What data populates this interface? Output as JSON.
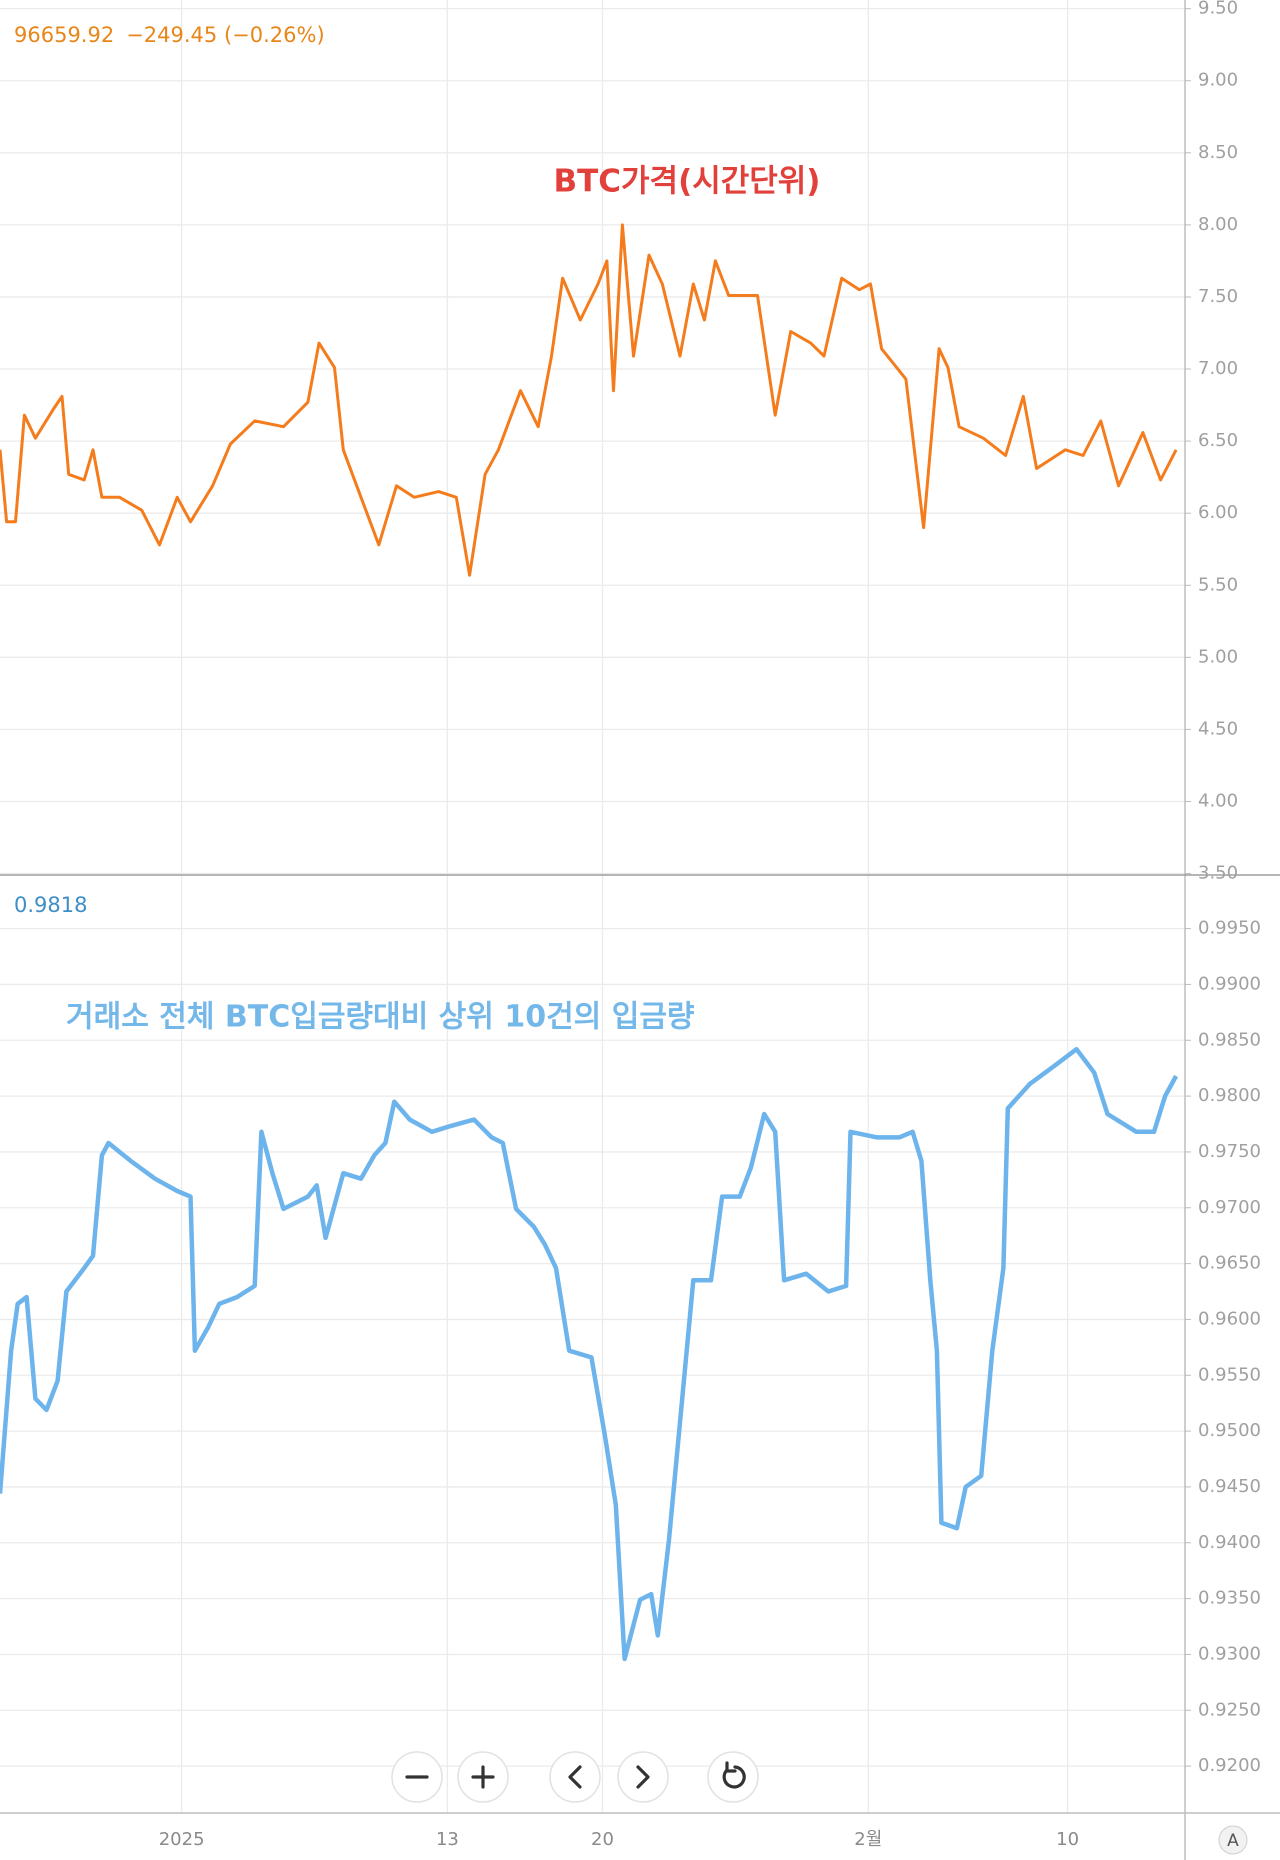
{
  "axis_mode_button": "A",
  "chart_data": [
    {
      "type": "line",
      "legend_value": "96659.92",
      "legend_change": "−249.45 (−0.26%)",
      "annotation": "BTC가격(시간단위)",
      "xlim": [
        -8.2,
        45.3
      ],
      "xticks": [
        0,
        12,
        19,
        31,
        40
      ],
      "ylim": [
        3.49,
        9.56
      ],
      "yticks": [
        {
          "value": 3.5,
          "label": "3.50"
        },
        {
          "value": 4,
          "label": "4.00"
        },
        {
          "value": 4.5,
          "label": "4.50"
        },
        {
          "value": 5,
          "label": "5.00"
        },
        {
          "value": 5.5,
          "label": "5.50"
        },
        {
          "value": 6,
          "label": "6.00"
        },
        {
          "value": 6.5,
          "label": "6.50"
        },
        {
          "value": 7,
          "label": "7.00"
        },
        {
          "value": 7.5,
          "label": "7.50"
        },
        {
          "value": 8,
          "label": "8.00"
        },
        {
          "value": 8.5,
          "label": "8.50"
        },
        {
          "value": 9,
          "label": "9.00"
        },
        {
          "value": 9.5,
          "label": "9.50"
        }
      ],
      "grid": true,
      "series": [
        {
          "color": "#f47c1c",
          "x": [
            -8.2,
            -7.9,
            -7.5,
            -7.1,
            -6.6,
            -5.8,
            -5.4,
            -5.1,
            -4.4,
            -4.0,
            -3.6,
            -2.8,
            -1.8,
            -1.0,
            -0.2,
            0.4,
            1.4,
            2.2,
            3.3,
            4.6,
            5.7,
            6.2,
            6.9,
            7.3,
            8.1,
            8.9,
            9.7,
            10.5,
            11.6,
            12.4,
            13.0,
            13.7,
            14.3,
            15.3,
            16.1,
            16.7,
            17.2,
            18.0,
            18.8,
            19.2,
            19.5,
            19.9,
            20.4,
            21.1,
            21.7,
            22.5,
            23.1,
            23.6,
            24.1,
            24.7,
            26.0,
            26.8,
            27.5,
            28.4,
            29.0,
            29.8,
            30.6,
            31.1,
            31.6,
            32.7,
            33.5,
            34.2,
            34.6,
            35.1,
            36.2,
            37.2,
            38.0,
            38.6,
            39.9,
            40.7,
            41.5,
            42.3,
            43.4,
            44.2,
            44.9
          ],
          "values": [
            6.44,
            5.94,
            5.94,
            6.68,
            6.52,
            6.72,
            6.81,
            6.27,
            6.23,
            6.44,
            6.11,
            6.11,
            6.02,
            5.78,
            6.11,
            5.94,
            6.19,
            6.48,
            6.64,
            6.6,
            6.77,
            7.18,
            7.01,
            6.44,
            6.11,
            5.78,
            6.19,
            6.11,
            6.15,
            6.11,
            5.57,
            6.27,
            6.44,
            6.85,
            6.6,
            7.09,
            7.63,
            7.34,
            7.59,
            7.75,
            6.85,
            8.0,
            7.09,
            7.79,
            7.59,
            7.09,
            7.59,
            7.34,
            7.75,
            7.51,
            7.51,
            6.68,
            7.26,
            7.18,
            7.09,
            7.63,
            7.55,
            7.59,
            7.14,
            6.93,
            5.9,
            7.14,
            7.01,
            6.6,
            6.52,
            6.4,
            6.81,
            6.31,
            6.44,
            6.4,
            6.64,
            6.19,
            6.56,
            6.23,
            6.44
          ]
        }
      ]
    },
    {
      "type": "line",
      "legend_value": "0.9818",
      "annotation": "거래소 전체 BTC입금량대비 상위 10건의 입금량",
      "xlim": [
        -8.2,
        45.3
      ],
      "xticks": [
        {
          "value": 0,
          "label": "2025"
        },
        {
          "value": 12,
          "label": "13"
        },
        {
          "value": 19,
          "label": "20"
        },
        {
          "value": 31,
          "label": "2월"
        },
        {
          "value": 40,
          "label": "10"
        }
      ],
      "ylim": [
        0.9158,
        0.9998
      ],
      "yticks": [
        {
          "value": 0.92,
          "label": "0.9200"
        },
        {
          "value": 0.925,
          "label": "0.9250"
        },
        {
          "value": 0.93,
          "label": "0.9300"
        },
        {
          "value": 0.935,
          "label": "0.9350"
        },
        {
          "value": 0.94,
          "label": "0.9400"
        },
        {
          "value": 0.945,
          "label": "0.9450"
        },
        {
          "value": 0.95,
          "label": "0.9500"
        },
        {
          "value": 0.955,
          "label": "0.9550"
        },
        {
          "value": 0.96,
          "label": "0.9600"
        },
        {
          "value": 0.965,
          "label": "0.9650"
        },
        {
          "value": 0.97,
          "label": "0.9700"
        },
        {
          "value": 0.975,
          "label": "0.9750"
        },
        {
          "value": 0.98,
          "label": "0.9800"
        },
        {
          "value": 0.985,
          "label": "0.9850"
        },
        {
          "value": 0.99,
          "label": "0.9900"
        },
        {
          "value": 0.995,
          "label": "0.9950"
        }
      ],
      "grid": true,
      "series": [
        {
          "color": "#6db4ec",
          "x": [
            -8.2,
            -7.7,
            -7.4,
            -7.0,
            -6.6,
            -6.1,
            -5.6,
            -5.2,
            -4.4,
            -4.0,
            -3.6,
            -3.3,
            -2.3,
            -1.2,
            -0.2,
            0.4,
            0.6,
            1.2,
            1.7,
            2.5,
            3.3,
            3.6,
            4.1,
            4.6,
            5.7,
            6.1,
            6.5,
            7.3,
            8.1,
            8.7,
            9.2,
            9.6,
            10.3,
            11.3,
            12.1,
            13.2,
            14.0,
            14.5,
            15.1,
            15.9,
            16.4,
            16.9,
            17.5,
            18.5,
            19.1,
            19.6,
            20.0,
            20.7,
            21.2,
            21.5,
            22.0,
            22.5,
            23.1,
            23.9,
            24.4,
            25.2,
            25.7,
            26.3,
            26.8,
            27.2,
            28.2,
            29.2,
            30.0,
            30.2,
            31.4,
            32.4,
            33.0,
            33.4,
            33.8,
            34.1,
            34.3,
            35.0,
            35.4,
            36.1,
            36.6,
            37.1,
            37.3,
            38.3,
            39.4,
            40.4,
            41.2,
            41.8,
            43.1,
            43.9,
            44.4,
            44.9
          ],
          "values": [
            0.9444,
            0.9572,
            0.9614,
            0.962,
            0.9529,
            0.9519,
            0.9545,
            0.9625,
            0.9646,
            0.9657,
            0.9747,
            0.9758,
            0.9742,
            0.9726,
            0.9715,
            0.971,
            0.9572,
            0.9593,
            0.9614,
            0.962,
            0.963,
            0.9768,
            0.9731,
            0.9699,
            0.971,
            0.972,
            0.9673,
            0.9731,
            0.9726,
            0.9747,
            0.9758,
            0.9795,
            0.9779,
            0.9768,
            0.9773,
            0.9779,
            0.9763,
            0.9758,
            0.9699,
            0.9683,
            0.9667,
            0.9646,
            0.9572,
            0.9566,
            0.9497,
            0.9434,
            0.9296,
            0.9349,
            0.9354,
            0.9317,
            0.9402,
            0.9508,
            0.9635,
            0.9635,
            0.971,
            0.971,
            0.9736,
            0.9784,
            0.9768,
            0.9635,
            0.9641,
            0.9625,
            0.963,
            0.9768,
            0.9763,
            0.9763,
            0.9768,
            0.9742,
            0.9635,
            0.9572,
            0.9418,
            0.9413,
            0.945,
            0.946,
            0.9572,
            0.9646,
            0.9789,
            0.9811,
            0.9827,
            0.9842,
            0.9821,
            0.9784,
            0.9768,
            0.9768,
            0.98,
            0.9818
          ]
        }
      ]
    }
  ]
}
